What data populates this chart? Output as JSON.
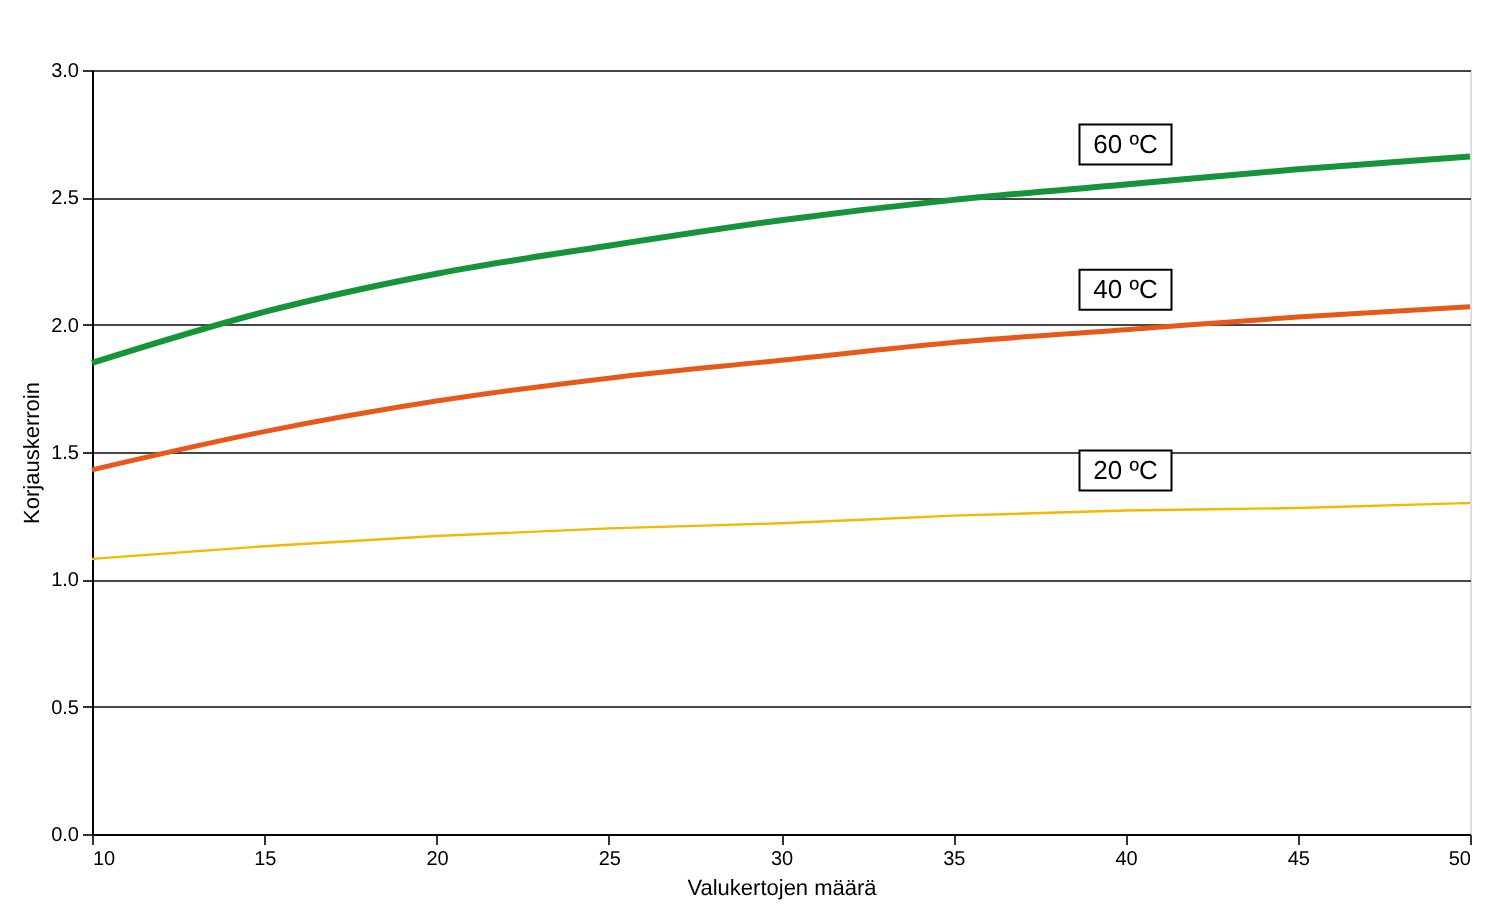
{
  "chart_data": {
    "type": "line",
    "xlabel": "Valukertojen määrä",
    "ylabel": "Korjauskerroin",
    "x": [
      10,
      15,
      20,
      25,
      30,
      35,
      40,
      45,
      50
    ],
    "series": [
      {
        "name": "60 ºC",
        "color": "#15943a",
        "values": [
          1.85,
          2.05,
          2.2,
          2.31,
          2.41,
          2.49,
          2.55,
          2.61,
          2.66
        ]
      },
      {
        "name": "40 ºC",
        "color": "#e8581a",
        "values": [
          1.43,
          1.58,
          1.7,
          1.79,
          1.86,
          1.93,
          1.98,
          2.03,
          2.07
        ]
      },
      {
        "name": "20 ºC",
        "color": "#f5b800",
        "values": [
          1.08,
          1.13,
          1.17,
          1.2,
          1.22,
          1.25,
          1.27,
          1.28,
          1.3
        ]
      }
    ],
    "xlim": [
      10,
      50
    ],
    "xticks": [
      10,
      15,
      20,
      25,
      30,
      35,
      40,
      45,
      50
    ],
    "ylim": [
      0,
      3
    ],
    "yticks": [
      {
        "value": 0,
        "label": "0.0"
      },
      0.5,
      {
        "value": 1,
        "label": "1.0"
      },
      1.5,
      {
        "value": 2,
        "label": "2.0"
      },
      2.5,
      {
        "value": 3,
        "label": "3.0"
      }
    ],
    "grid": "y",
    "marker": "none",
    "line_style": "solid"
  }
}
